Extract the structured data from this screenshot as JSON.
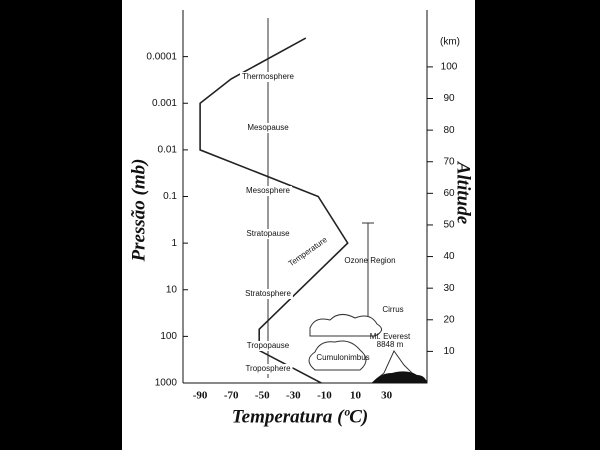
{
  "chart_data": {
    "type": "line",
    "x_label": "Temperatura (ºC)",
    "y_label": "Pressão (mb)",
    "y2_label": "Altitude",
    "y2_unit": "(km)",
    "x": [
      -22,
      -70,
      -90,
      -90,
      -14,
      5,
      -52,
      -52,
      -12
    ],
    "values": [
      4e-05,
      0.0003,
      0.001,
      0.01,
      0.1,
      1,
      70,
      200,
      1000
    ],
    "color": "#222",
    "xlim": [
      -101,
      56
    ],
    "xticks": [
      -90,
      -70,
      -50,
      -30,
      -10,
      10,
      30
    ],
    "ylim": [
      1000,
      1e-05
    ],
    "yscale": "log",
    "yticks": [
      0.0001,
      0.001,
      0.01,
      0.1,
      1,
      10,
      100,
      1000
    ],
    "y2lim": [
      0,
      118
    ],
    "y2ticks": [
      10,
      20,
      30,
      40,
      50,
      60,
      70,
      80,
      90,
      100
    ],
    "annotations": [
      "Thermosphere",
      "Mesopause",
      "Mesosphere",
      "Stratopause",
      "Temperature",
      "Ozone Region",
      "Stratosphere",
      "Cirrus",
      "Mt. Everest",
      "8848 m",
      "Tropopause",
      "Cumulonimbus",
      "Troposphere"
    ]
  }
}
